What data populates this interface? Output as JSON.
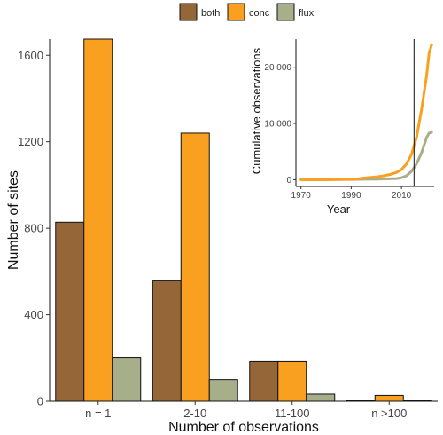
{
  "chart_data": [
    {
      "type": "bar",
      "categories": [
        "n = 1",
        "2-10",
        "11-100",
        "n >100"
      ],
      "series": [
        {
          "name": "both",
          "color": "#956638",
          "values": [
            828,
            560,
            183,
            2
          ]
        },
        {
          "name": "conc",
          "color": "#f9a020",
          "values": [
            1675,
            1240,
            183,
            27
          ]
        },
        {
          "name": "flux",
          "color": "#a7ae8a",
          "values": [
            203,
            100,
            33,
            2
          ]
        }
      ],
      "xlabel": "Number of observations",
      "ylabel": "Number of sites",
      "ylim": [
        0,
        1675
      ],
      "yticks": [
        0,
        400,
        800,
        1200,
        1600
      ],
      "ytick_labels": [
        "0",
        "400",
        "800",
        "1200",
        "1600"
      ],
      "legend_position": "top",
      "grid": false
    },
    {
      "type": "line",
      "xlabel": "Year",
      "ylabel": "Cumulative observations",
      "xlim": [
        1968,
        2023
      ],
      "ylim": [
        -1200,
        25000
      ],
      "xticks": [
        1970,
        1990,
        2010
      ],
      "xtick_labels": [
        "1970",
        "1990",
        "2010"
      ],
      "yticks": [
        0,
        10000,
        20000
      ],
      "ytick_labels": [
        "0",
        "10 000",
        "20 000"
      ],
      "vertical_line_x": 2015,
      "grid": false,
      "series": [
        {
          "name": "conc",
          "color": "#f9a020",
          "x": [
            1970,
            1980,
            1990,
            1993,
            1995,
            2000,
            2003,
            2006,
            2008,
            2010,
            2012,
            2014,
            2016,
            2018,
            2020,
            2021,
            2022
          ],
          "y": [
            0,
            0,
            80,
            150,
            300,
            500,
            700,
            1000,
            1300,
            1800,
            2800,
            4500,
            7500,
            12500,
            18500,
            22500,
            24000
          ]
        },
        {
          "name": "flux",
          "color": "#a7ae8a",
          "x": [
            1970,
            1980,
            1990,
            1995,
            2000,
            2005,
            2008,
            2010,
            2012,
            2014,
            2016,
            2018,
            2020,
            2021,
            2022
          ],
          "y": [
            0,
            0,
            50,
            80,
            100,
            150,
            200,
            350,
            700,
            1500,
            2800,
            4800,
            7500,
            8300,
            8400
          ]
        }
      ]
    }
  ]
}
